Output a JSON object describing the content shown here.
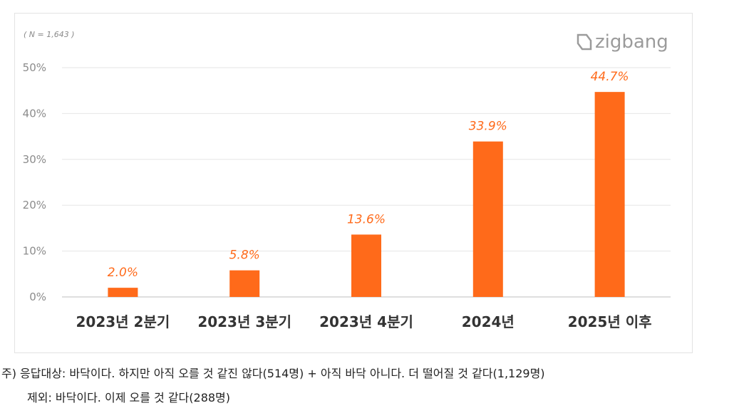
{
  "chart_data": {
    "type": "bar",
    "sample_note": "( N = 1,643 )",
    "brand": "zigbang",
    "categories": [
      "2023년 2분기",
      "2023년 3분기",
      "2023년 4분기",
      "2024년",
      "2025년 이후"
    ],
    "values": [
      2.0,
      5.8,
      13.6,
      33.9,
      44.7
    ],
    "data_labels": [
      "2.0%",
      "5.8%",
      "13.6%",
      "33.9%",
      "44.7%"
    ],
    "yticks": [
      "0%",
      "10%",
      "20%",
      "30%",
      "40%",
      "50%"
    ],
    "ylim": [
      0,
      50
    ],
    "grid": true,
    "bar_color": "#ff6a1a",
    "label_color": "#ff6a1a"
  },
  "footnote": {
    "line1": "주) 응답대상: 바닥이다. 하지만 아직 오를 것 같진 않다(514명) + 아직 바닥 아니다. 더 떨어질 것 같다(1,129명)",
    "line2": "제외: 바닥이다. 이제 오를 것 같다(288명)"
  }
}
